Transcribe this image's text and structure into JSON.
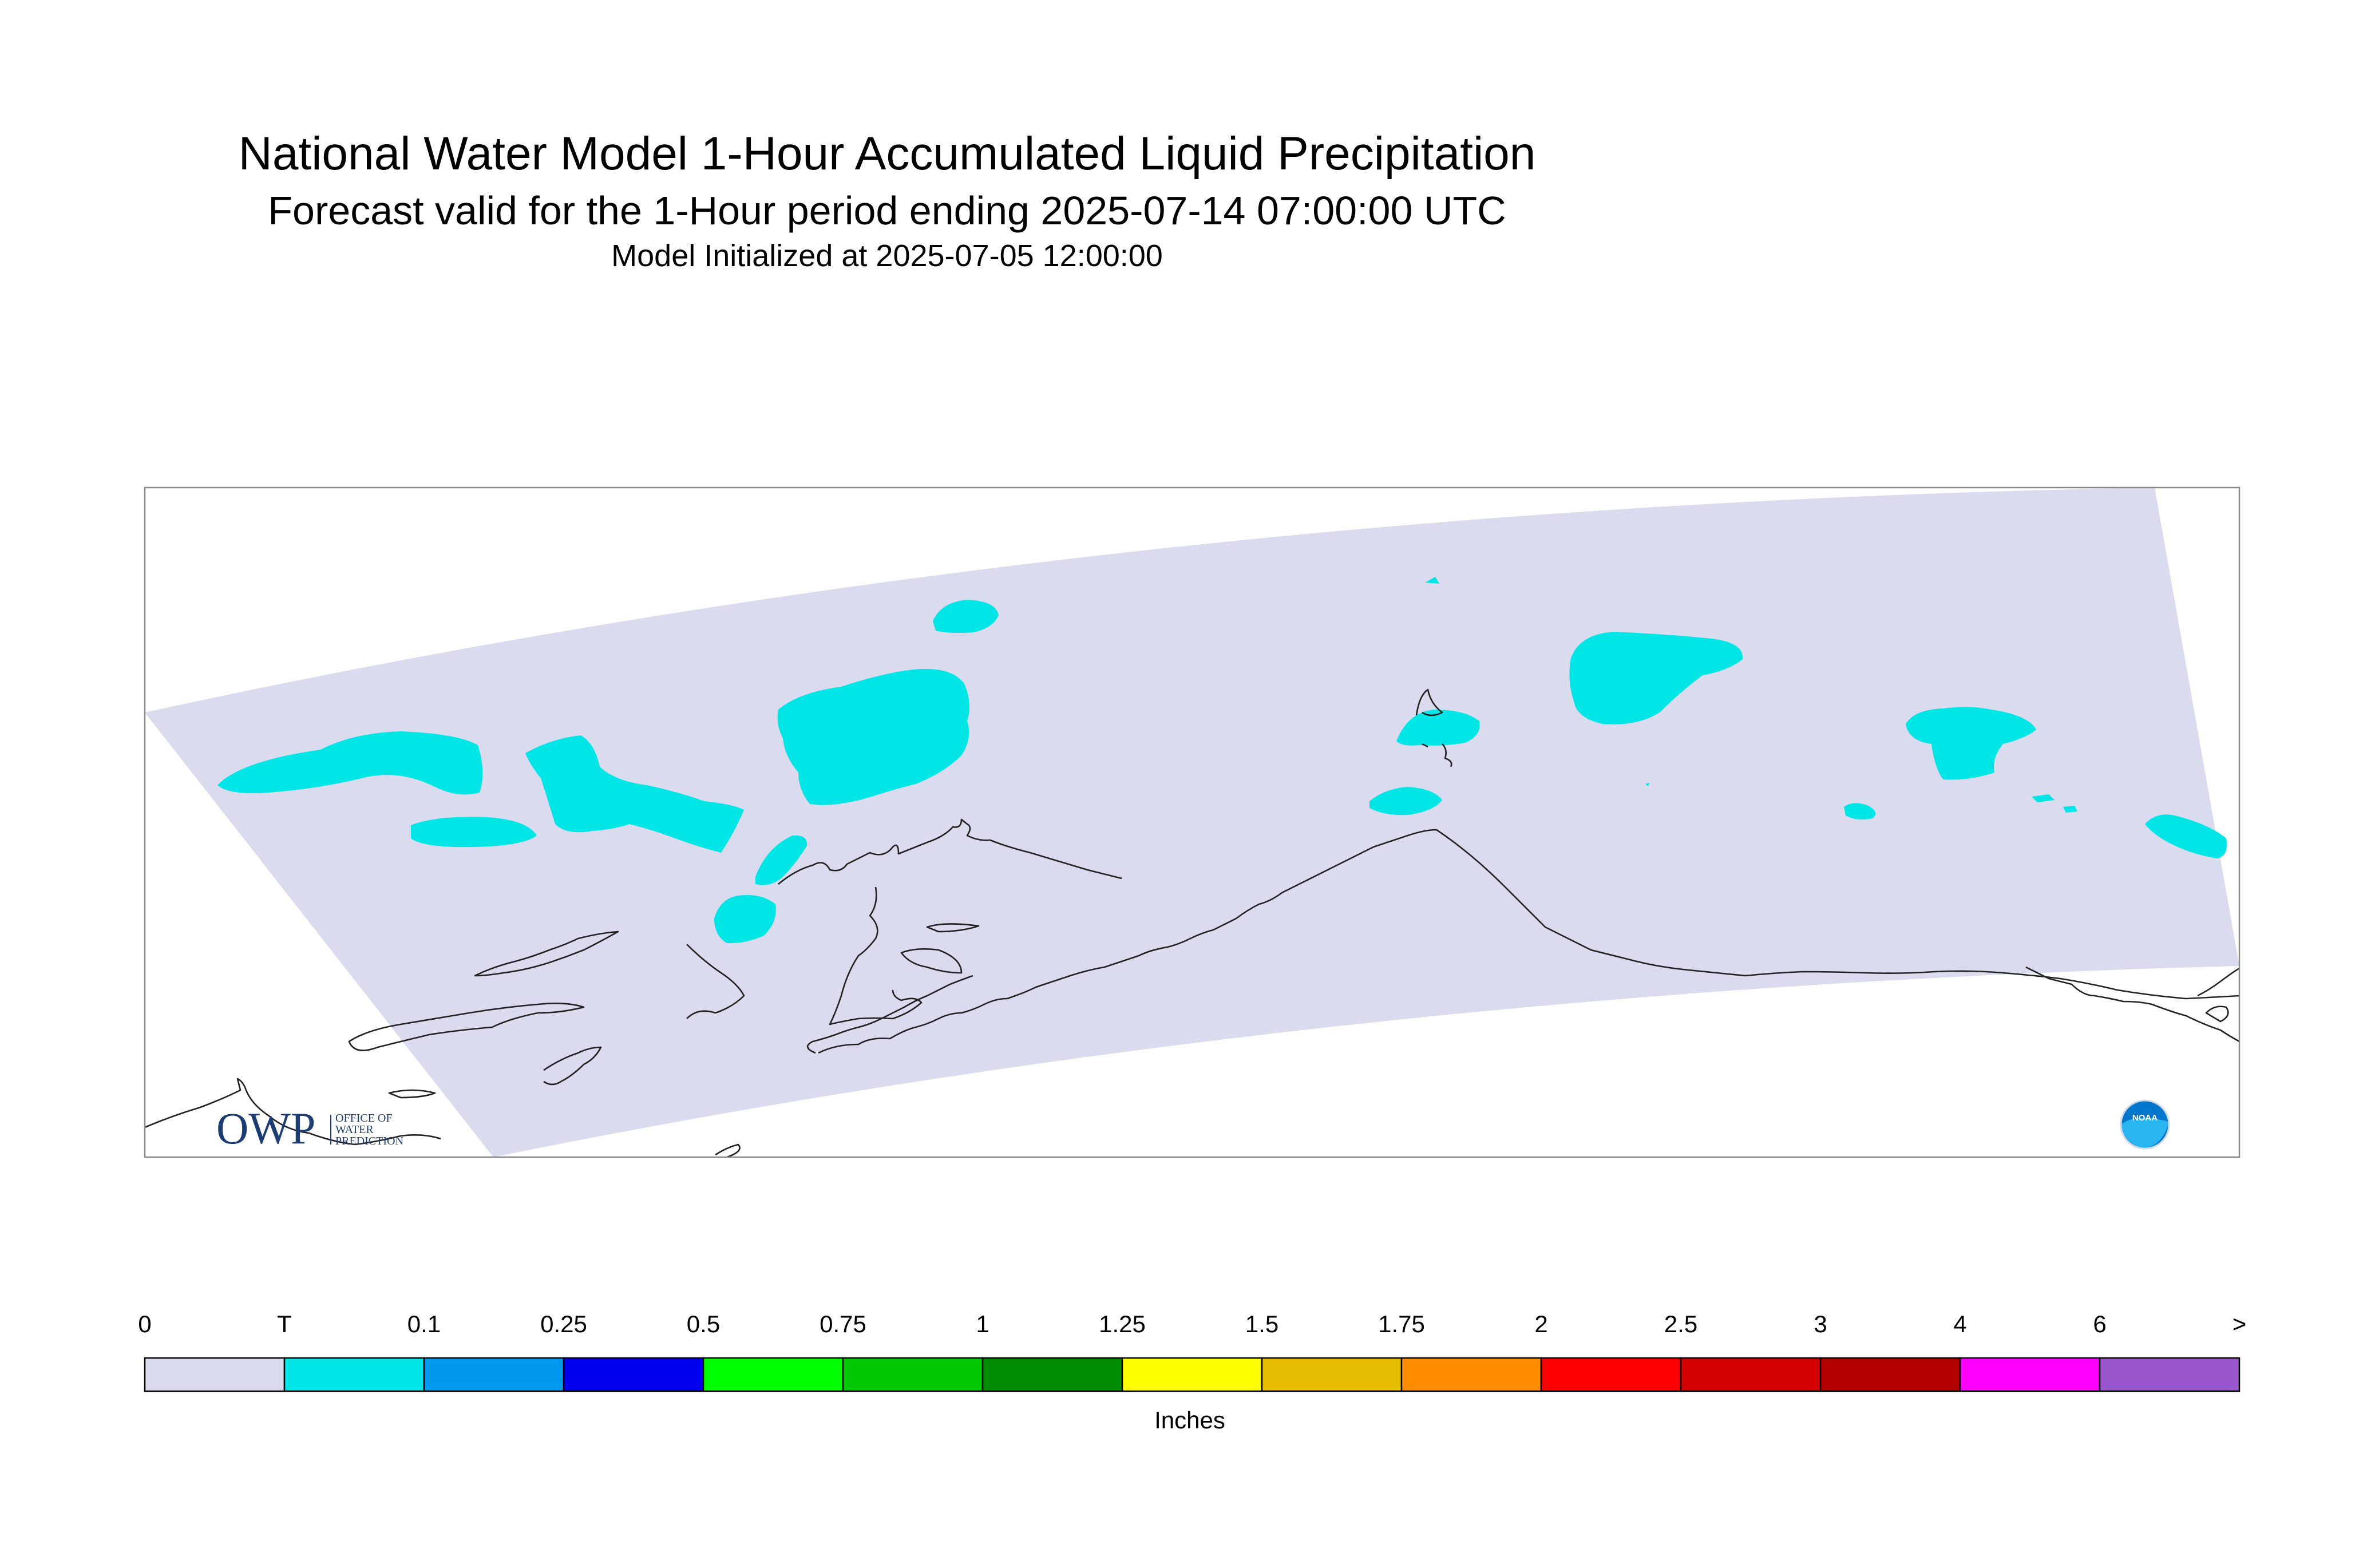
{
  "title": "National Water Model 1-Hour Accumulated Liquid Precipitation",
  "subtitle": "Forecast valid for the 1-Hour period ending 2025-07-14 07:00:00 UTC",
  "initialized": "Model Initialized at 2025-07-05 12:00:00",
  "logos": {
    "owp_text": "OWP",
    "owp_sub": [
      "OFFICE OF",
      "WATER",
      "PREDICTION"
    ],
    "noaa_text": "NOAA"
  },
  "colorbar": {
    "unit": "Inches",
    "labels": [
      "0",
      "T",
      "0.1",
      "0.25",
      "0.5",
      "0.75",
      "1",
      "1.25",
      "1.5",
      "1.75",
      "2",
      "2.5",
      "3",
      "4",
      "6",
      ">"
    ],
    "colors": [
      "#dadbee",
      "#00e5e5",
      "#0099ee",
      "#0000ee",
      "#00ff00",
      "#00c800",
      "#008c00",
      "#ffff00",
      "#e6bc00",
      "#ff8c00",
      "#ff0000",
      "#d20000",
      "#b40000",
      "#ff00ff",
      "#9955cc"
    ]
  },
  "map": {
    "domain_color": "#dadbee",
    "precip_color": "#00e5e5",
    "coastline_color": "#222222"
  }
}
